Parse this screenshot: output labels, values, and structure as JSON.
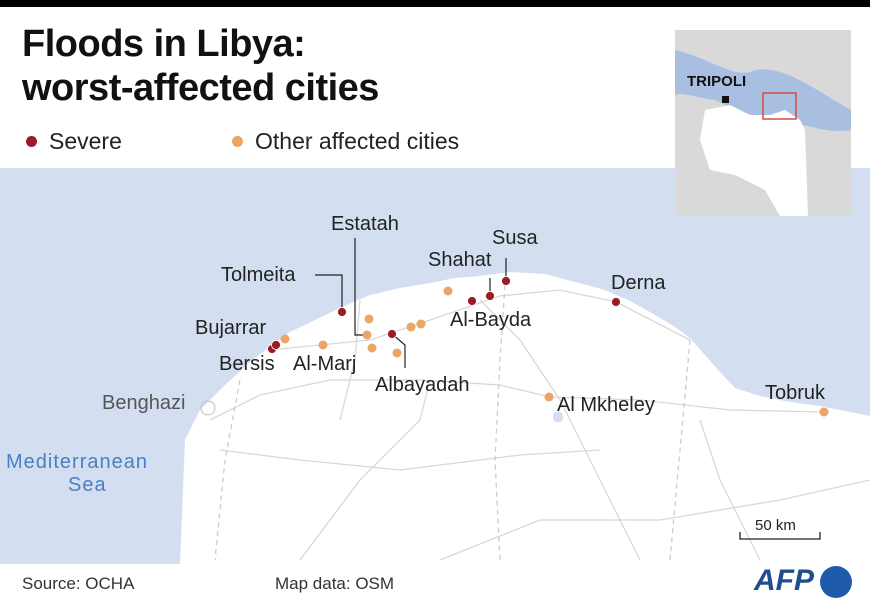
{
  "title_line1": "Floods in Libya:",
  "title_line2": "worst-affected cities",
  "legend": {
    "severe": "Severe",
    "other": "Other affected cities"
  },
  "colors": {
    "severe": "#9b1c24",
    "other": "#eba566",
    "sea": "#d3dff1",
    "land": "#ffffff",
    "outside": "#d9d9d9"
  },
  "cities_severe": [
    "Bersis",
    "Bujarrar",
    "Tolmeita",
    "Estatah",
    "Albayadah",
    "Al-Bayda",
    "Shahat",
    "Susa",
    "Derna"
  ],
  "cities_other": [
    "Al-Marj",
    "Al Mkheley",
    "Tobruk"
  ],
  "labels": {
    "estatah": "Estatah",
    "tolmeita": "Tolmeita",
    "bujarrar": "Bujarrar",
    "bersis": "Bersis",
    "almarj": "Al-Marj",
    "albayadah": "Albayadah",
    "shahat": "Shahat",
    "susa": "Susa",
    "albayda": "Al-Bayda",
    "derna": "Derna",
    "almkheley": "Al Mkheley",
    "tobruk": "Tobruk",
    "benghazi": "Benghazi",
    "sea1": "Mediterranean",
    "sea2": "Sea"
  },
  "inset": {
    "capital": "TRIPOLI"
  },
  "scale": "50 km",
  "footer": {
    "source": "Source: OCHA",
    "mapdata": "Map data: OSM"
  },
  "logo": "AFP"
}
